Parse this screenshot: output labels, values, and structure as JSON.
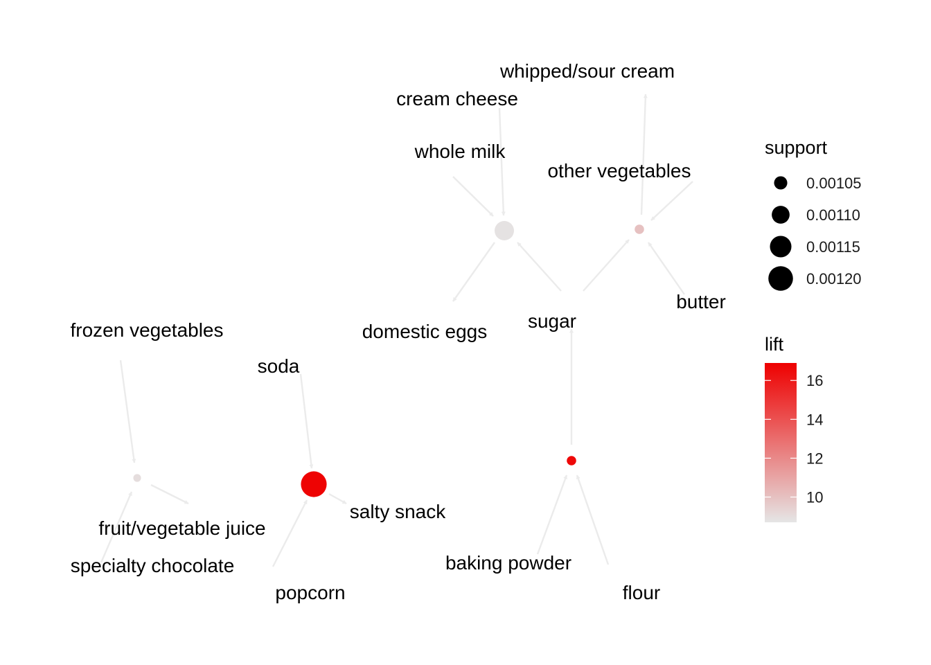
{
  "graph": {
    "type": "association-rules-network",
    "items": [
      {
        "id": "whipped_sour_cream",
        "label": "whipped/sour cream"
      },
      {
        "id": "cream_cheese",
        "label": "cream cheese"
      },
      {
        "id": "whole_milk",
        "label": "whole milk"
      },
      {
        "id": "other_vegetables",
        "label": "other vegetables"
      },
      {
        "id": "butter",
        "label": "butter"
      },
      {
        "id": "sugar",
        "label": "sugar"
      },
      {
        "id": "domestic_eggs",
        "label": "domestic eggs"
      },
      {
        "id": "frozen_vegetables",
        "label": "frozen vegetables"
      },
      {
        "id": "soda",
        "label": "soda"
      },
      {
        "id": "salty_snack",
        "label": "salty snack"
      },
      {
        "id": "fruit_vegetable_juice",
        "label": "fruit/vegetable juice"
      },
      {
        "id": "specialty_chocolate",
        "label": "specialty chocolate"
      },
      {
        "id": "popcorn",
        "label": "popcorn"
      },
      {
        "id": "baking_powder",
        "label": "baking powder"
      },
      {
        "id": "flour",
        "label": "flour"
      }
    ],
    "rules": [
      {
        "id": "rule1",
        "support": 0.00112,
        "lift": 8.8,
        "lhs": [
          "cream_cheese",
          "whole_milk",
          "sugar"
        ],
        "rhs": [
          "domestic_eggs"
        ]
      },
      {
        "id": "rule2",
        "support": 0.00102,
        "lift": 10.0,
        "lhs": [
          "other_vegetables",
          "butter",
          "sugar"
        ],
        "rhs": [
          "whipped_sour_cream"
        ]
      },
      {
        "id": "rule3",
        "support": 0.00101,
        "lift": 9.0,
        "lhs": [
          "frozen_vegetables",
          "specialty_chocolate"
        ],
        "rhs": [
          "fruit_vegetable_juice"
        ]
      },
      {
        "id": "rule4",
        "support": 0.00122,
        "lift": 16.8,
        "lhs": [
          "soda",
          "popcorn"
        ],
        "rhs": [
          "salty_snack"
        ]
      },
      {
        "id": "rule5",
        "support": 0.00102,
        "lift": 16.6,
        "lhs": [
          "baking_powder",
          "flour"
        ],
        "rhs": [
          "sugar"
        ]
      }
    ]
  },
  "legend": {
    "support": {
      "title": "support",
      "entries": [
        {
          "label": "0.00105",
          "value": 0.00105
        },
        {
          "label": "0.00110",
          "value": 0.0011
        },
        {
          "label": "0.00115",
          "value": 0.00115
        },
        {
          "label": "0.00120",
          "value": 0.0012
        }
      ]
    },
    "lift": {
      "title": "lift",
      "min": 8.7,
      "max": 16.9,
      "low_color": "#e5e5e5",
      "high_color": "#ee0000",
      "ticks": [
        {
          "label": "10",
          "value": 10
        },
        {
          "label": "12",
          "value": 12
        },
        {
          "label": "14",
          "value": 14
        },
        {
          "label": "16",
          "value": 16
        }
      ]
    }
  },
  "colors": {
    "edge": "#ebebeb",
    "label": "#000000"
  }
}
